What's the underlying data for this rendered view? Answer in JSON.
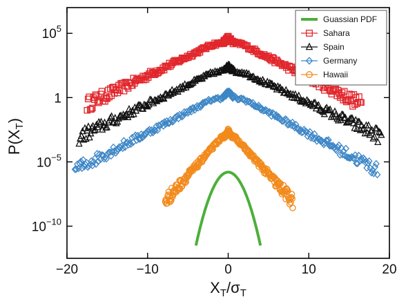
{
  "chart_data": {
    "type": "scatter",
    "x_axis": {
      "label_base": "X",
      "label_sub": "T",
      "label_sep": "/",
      "label_base2": "σ",
      "label_sub2": "T",
      "range": [
        -20,
        20
      ],
      "ticks": [
        -20,
        -10,
        0,
        10,
        20
      ],
      "tick_labels": [
        "−20",
        "−10",
        "0",
        "10",
        "20"
      ]
    },
    "y_axis": {
      "label_prefix": "P(",
      "label_base": "X",
      "label_sub": "T",
      "label_suffix": ")",
      "scale": "log",
      "range_log10": [
        -12.5,
        7
      ],
      "ticks_log10": [
        5,
        0,
        -5,
        -10
      ],
      "tick_labels": [
        {
          "base": "10",
          "sup": "5"
        },
        {
          "base": "1",
          "sup": ""
        },
        {
          "base": "10",
          "sup": "−5"
        },
        {
          "base": "10",
          "sup": "−10"
        }
      ]
    },
    "legend": {
      "placement": "top-right",
      "entries": [
        {
          "label": "Guassian PDF",
          "color": "#4caf3a",
          "marker": "line"
        },
        {
          "label": "Sahara",
          "color": "#e1262c",
          "marker": "square"
        },
        {
          "label": "Spain",
          "color": "#111111",
          "marker": "triangle"
        },
        {
          "label": "Germany",
          "color": "#3d86c6",
          "marker": "diamond"
        },
        {
          "label": "Hawaii",
          "color": "#f28a1c",
          "marker": "circle"
        }
      ]
    },
    "series": [
      {
        "name": "Sahara",
        "color": "#e1262c",
        "marker": "square",
        "peak_log10": 4.7,
        "tail_log10": 0,
        "x_min": -17.5,
        "x_max": 16.5
      },
      {
        "name": "Spain",
        "color": "#111111",
        "marker": "triangle",
        "peak_log10": 2.5,
        "tail_log10": -2.5,
        "x_min": -18.5,
        "x_max": 19
      },
      {
        "name": "Germany",
        "color": "#3d86c6",
        "marker": "diamond",
        "peak_log10": 0.5,
        "tail_log10": -5,
        "x_min": -19,
        "x_max": 18.5
      },
      {
        "name": "Hawaii",
        "color": "#f28a1c",
        "marker": "circle",
        "peak_log10": -2.5,
        "tail_log10": -7.5,
        "x_min": -7.8,
        "x_max": 8
      }
    ],
    "gaussian": {
      "name": "Guassian PDF",
      "color": "#4caf3a",
      "x_range": [
        -4,
        4
      ],
      "peak_log10": -5.8,
      "end_log10": -11.5
    },
    "grid": false
  }
}
